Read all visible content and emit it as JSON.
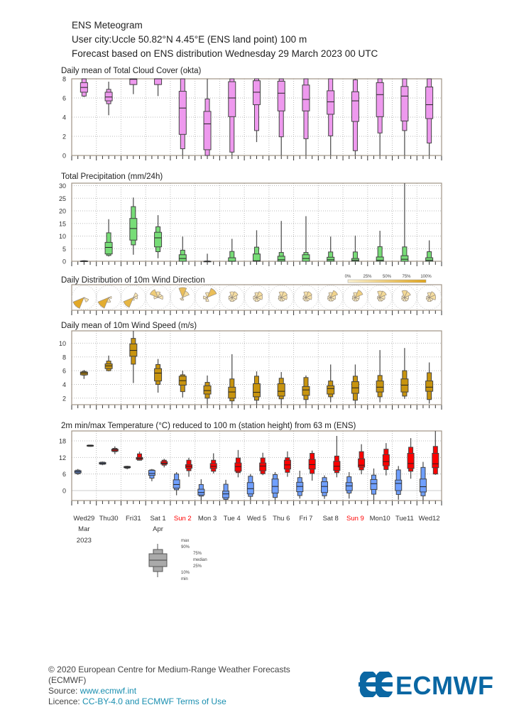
{
  "header": {
    "title": "ENS Meteogram",
    "location": "User city:Uccle 50.82°N 4.45°E (ENS land point) 100 m",
    "forecast": "Forecast based on ENS distribution Wednesday 29 March 2023 00 UTC"
  },
  "days": [
    {
      "label": "Wed29",
      "month": "Mar",
      "year": "2023",
      "weekend": false
    },
    {
      "label": "Thu30",
      "weekend": false
    },
    {
      "label": "Fri31",
      "weekend": false
    },
    {
      "label": "Sat 1",
      "month": "Apr",
      "weekend": false
    },
    {
      "label": "Sun 2",
      "weekend": true
    },
    {
      "label": "Mon 3",
      "weekend": false
    },
    {
      "label": "Tue 4",
      "weekend": false
    },
    {
      "label": "Wed 5",
      "weekend": false
    },
    {
      "label": "Thu 6",
      "weekend": false
    },
    {
      "label": "Fri 7",
      "weekend": false
    },
    {
      "label": "Sat 8",
      "weekend": false
    },
    {
      "label": "Sun 9",
      "weekend": true
    },
    {
      "label": "Mon10",
      "weekend": false
    },
    {
      "label": "Tue11",
      "weekend": false
    },
    {
      "label": "Wed12",
      "weekend": false
    }
  ],
  "colors": {
    "weekend": "#ff0000",
    "cloud": "#ee99ee",
    "precip": "#77dd77",
    "wind": "#c8940e",
    "tmin": "#6f9fff",
    "tmax": "#ff0000",
    "rose_low": "#fdf3d2",
    "rose_high": "#e0a41c"
  },
  "chart_data": [
    {
      "id": "cloud",
      "type": "boxplot",
      "title": "Daily mean of Total Cloud Cover (okta)",
      "ylim": [
        0,
        8
      ],
      "yticks": [
        0,
        2,
        4,
        6,
        8
      ],
      "grid": true,
      "box_stats": "min,p10,p25,median,p75,p90,max",
      "series": [
        {
          "color": "#ee99ee",
          "position": "day",
          "values": [
            [
              6.1,
              6.2,
              6.6,
              7.1,
              7.6,
              8,
              8
            ],
            [
              4.2,
              5.4,
              5.7,
              6.1,
              6.6,
              6.9,
              7.7
            ],
            [
              6.4,
              7.4,
              7.4,
              7.95,
              8,
              8,
              8
            ],
            [
              6.2,
              7.4,
              7.4,
              8,
              8,
              8,
              8
            ],
            [
              0,
              0.7,
              2.2,
              4.95,
              6.7,
              8,
              8
            ],
            [
              0,
              0,
              0.6,
              3.3,
              4.6,
              5.9,
              8
            ],
            [
              0,
              0.35,
              4.05,
              6.0,
              7.7,
              8,
              8
            ],
            [
              1.4,
              2.6,
              5.3,
              6.6,
              7.8,
              8,
              8
            ],
            [
              0,
              1.95,
              4.65,
              6.5,
              7.75,
              8,
              8
            ],
            [
              0,
              1.75,
              4.65,
              5.85,
              7.35,
              8,
              8
            ],
            [
              0,
              2.05,
              4.3,
              5.6,
              6.75,
              8,
              8
            ],
            [
              0,
              0.5,
              3.55,
              5.7,
              6.65,
              7.9,
              8
            ],
            [
              0,
              2.35,
              4.05,
              6.35,
              7.6,
              8,
              8
            ],
            [
              0,
              2.6,
              3.6,
              6.2,
              7.2,
              8,
              8
            ],
            [
              0,
              1.3,
              3.85,
              5.3,
              7.15,
              8,
              8
            ]
          ]
        }
      ]
    },
    {
      "id": "precip",
      "type": "boxplot",
      "title": "Total Precipitation (mm/24h)",
      "ylim": [
        0,
        31
      ],
      "yticks": [
        0,
        5,
        10,
        15,
        20,
        25,
        30
      ],
      "grid": true,
      "box_stats": "min,p10,p25,median,p75,p90,max",
      "series": [
        {
          "color": "#77dd77",
          "position": "day",
          "values": [
            [
              0,
              0,
              0,
              0,
              0.1,
              0.2,
              0.4
            ],
            [
              1.9,
              2.3,
              2.9,
              5.5,
              7.5,
              11.3,
              16.7
            ],
            [
              2.6,
              6.5,
              8.4,
              13,
              17,
              21.7,
              25.3
            ],
            [
              1.2,
              3.8,
              5.7,
              9.3,
              11.5,
              13.7,
              18.3
            ],
            [
              0,
              0,
              0,
              1.1,
              2.6,
              4.4,
              9.8
            ],
            [
              0,
              0,
              0,
              0,
              0,
              0.1,
              3
            ],
            [
              0,
              0,
              0,
              0,
              1.4,
              3.9,
              8.9
            ],
            [
              0,
              0,
              0,
              0.2,
              2.9,
              5.6,
              12.3
            ],
            [
              0,
              0,
              0,
              0.6,
              2,
              3.5,
              16
            ],
            [
              0,
              0,
              0,
              1.1,
              2.6,
              3.5,
              17.9
            ],
            [
              0,
              0,
              0,
              0.6,
              1.6,
              3.7,
              9.8
            ],
            [
              0,
              0,
              0,
              0.4,
              1.1,
              3.7,
              10.2
            ],
            [
              0,
              0,
              0,
              0.4,
              1.7,
              5.8,
              12.1
            ],
            [
              0,
              0,
              0,
              0.8,
              2.2,
              5.7,
              31
            ],
            [
              0,
              0,
              0,
              0.4,
              1.4,
              3.8,
              8.3
            ]
          ]
        }
      ]
    },
    {
      "id": "winddir",
      "type": "windrose",
      "title": "Daily Distribution of 10m Wind Direction",
      "sectors": [
        "N",
        "NE",
        "E",
        "SE",
        "S",
        "SW",
        "W",
        "NW"
      ],
      "legend_ticks": [
        "0%",
        "25%",
        "50%",
        "75%",
        "100%"
      ],
      "values": [
        [
          0,
          0,
          0,
          0.15,
          0,
          0.85,
          0,
          0
        ],
        [
          0,
          0,
          0.05,
          0,
          0.15,
          0.8,
          0,
          0
        ],
        [
          0,
          0.15,
          0.1,
          0,
          0.05,
          0.7,
          0,
          0
        ],
        [
          0.2,
          0.1,
          0.15,
          0,
          0,
          0,
          0.1,
          0.45
        ],
        [
          0.6,
          0.3,
          0,
          0,
          0.05,
          0.05,
          0,
          0
        ],
        [
          0.15,
          0.6,
          0,
          0,
          0.1,
          0.05,
          0.1,
          0
        ],
        [
          0.2,
          0.25,
          0.15,
          0.1,
          0.1,
          0.08,
          0.07,
          0.05
        ],
        [
          0.15,
          0.25,
          0.2,
          0.1,
          0.1,
          0.08,
          0.07,
          0.05
        ],
        [
          0.2,
          0.25,
          0.2,
          0.1,
          0.08,
          0.07,
          0.05,
          0.05
        ],
        [
          0.2,
          0.25,
          0.2,
          0.1,
          0.08,
          0.07,
          0.05,
          0.05
        ],
        [
          0.15,
          0.35,
          0.15,
          0.1,
          0.08,
          0.07,
          0.05,
          0.05
        ],
        [
          0.15,
          0.4,
          0.1,
          0.1,
          0.08,
          0.07,
          0.05,
          0.05
        ],
        [
          0.25,
          0.3,
          0.15,
          0.1,
          0.08,
          0.05,
          0.04,
          0.03
        ],
        [
          0.3,
          0.25,
          0.1,
          0.1,
          0.08,
          0.07,
          0.05,
          0.05
        ],
        [
          0.15,
          0.25,
          0.25,
          0.1,
          0.1,
          0.07,
          0.05,
          0.03
        ]
      ]
    },
    {
      "id": "wind",
      "type": "boxplot",
      "title": "Daily mean of 10m Wind Speed (m/s)",
      "ylim": [
        1.05,
        11.8
      ],
      "yticks": [
        2,
        4,
        6,
        8,
        10
      ],
      "grid": true,
      "box_stats": "min,p10,p25,median,p75,p90,max",
      "series": [
        {
          "color": "#c8940e",
          "position": "day",
          "values": [
            [
              4.8,
              5.35,
              5.4,
              5.65,
              5.8,
              5.9,
              6.1
            ],
            [
              5.9,
              6.0,
              6.3,
              6.7,
              7.0,
              7.4,
              8.2
            ],
            [
              4.2,
              6.95,
              8.1,
              8.95,
              9.9,
              10.7,
              11.9
            ],
            [
              2.8,
              4.0,
              4.5,
              5.65,
              6.3,
              6.9,
              7.7
            ],
            [
              2.1,
              2.95,
              3.9,
              4.55,
              5.2,
              5.4,
              6.0
            ],
            [
              1.1,
              2.0,
              2.6,
              3.1,
              3.8,
              4.3,
              5.3
            ],
            [
              0.9,
              1.6,
              2.0,
              2.9,
              3.6,
              4.8,
              8.4
            ],
            [
              1.0,
              1.7,
              2.2,
              2.85,
              4.1,
              5.2,
              5.9
            ],
            [
              0.7,
              1.9,
              2.3,
              3.0,
              4.1,
              4.9,
              5.8
            ],
            [
              1.1,
              1.8,
              2.4,
              3.2,
              3.7,
              5.0,
              5.3
            ],
            [
              1.4,
              2.2,
              2.6,
              3.4,
              3.8,
              4.5,
              6.9
            ],
            [
              1.1,
              1.7,
              2.7,
              3.5,
              4.4,
              5.2,
              6.9
            ],
            [
              1.4,
              2.2,
              2.9,
              3.6,
              4.5,
              5.3,
              9.0
            ],
            [
              1.9,
              2.3,
              2.9,
              3.9,
              4.8,
              6.0,
              9.3
            ],
            [
              1.2,
              1.8,
              3.0,
              3.6,
              4.5,
              5.7,
              7.2
            ]
          ]
        }
      ]
    },
    {
      "id": "temp",
      "type": "boxplot",
      "title": "2m min/max Temperature (°C) reduced to 100 m (station height) from 63 m (ENS)",
      "ylim": [
        -3.6,
        21.6
      ],
      "yticks": [
        0,
        6,
        12,
        18
      ],
      "grid": true,
      "box_stats": "min,p10,p25,median,p75,p90,max",
      "series": [
        {
          "color": "#6f9fff",
          "position": "early",
          "values": [
            [
              5.7,
              6.1,
              6.4,
              6.8,
              7.2,
              7.4,
              7.8
            ],
            [
              9.2,
              9.5,
              9.6,
              9.9,
              10.2,
              10.3,
              10.5
            ],
            [
              7.7,
              8.1,
              8.3,
              8.5,
              8.7,
              8.8,
              9.0
            ],
            [
              3.4,
              4.5,
              5.5,
              6.2,
              7.3,
              7.5,
              7.8
            ],
            [
              -1.7,
              0.3,
              0.9,
              2.2,
              3.9,
              6.0,
              6.7
            ],
            [
              -4.0,
              -2.0,
              -1.6,
              -0.7,
              0.5,
              2.2,
              4.1
            ],
            [
              -5.0,
              -3.2,
              -2.6,
              -1.2,
              -0.2,
              2.3,
              3.9
            ],
            [
              -3.5,
              -2.1,
              -1.2,
              0.7,
              2.9,
              5.2,
              6.0
            ],
            [
              -4.2,
              -2.5,
              -0.9,
              1.5,
              4.2,
              5.8,
              6.7
            ],
            [
              -2.9,
              -1.8,
              -0.4,
              1.5,
              3.0,
              4.7,
              7.2
            ],
            [
              -3.0,
              -1.9,
              -0.7,
              1.5,
              3.2,
              4.7,
              5.5
            ],
            [
              -2.9,
              -0.9,
              0,
              1.7,
              2.9,
              5.0,
              6.7
            ],
            [
              -3.6,
              -1.3,
              0.4,
              2.5,
              4.0,
              5.6,
              8.0
            ],
            [
              -3.3,
              -1.4,
              0,
              2.6,
              3.8,
              7.5,
              8.9
            ],
            [
              -3.8,
              -1.9,
              -0.5,
              1.4,
              4.2,
              8.4,
              10.4
            ]
          ]
        },
        {
          "color": "#ff0000",
          "position": "late",
          "values": [
            [
              15.9,
              16.0,
              16.1,
              16.3,
              16.4,
              16.5,
              16.6
            ],
            [
              13.2,
              14.1,
              14.3,
              14.7,
              15.0,
              15.3,
              16.0
            ],
            [
              10.9,
              11.0,
              11.3,
              11.7,
              12.0,
              13.3,
              14.1
            ],
            [
              8.4,
              9.2,
              9.6,
              9.9,
              10.5,
              11.0,
              11.5
            ],
            [
              5.0,
              7.2,
              8.1,
              8.8,
              9.4,
              11.0,
              11.9
            ],
            [
              6.2,
              7.0,
              8.0,
              8.8,
              9.8,
              11.0,
              13.5
            ],
            [
              4.8,
              6.5,
              7.0,
              8.7,
              10.0,
              11.8,
              14.7
            ],
            [
              5.6,
              6.1,
              7.2,
              8.9,
              10.0,
              11.8,
              13.7
            ],
            [
              5.0,
              6.6,
              7.8,
              9.3,
              11.0,
              11.9,
              14.2
            ],
            [
              3.6,
              6.2,
              7.8,
              9.4,
              11.3,
              13.5,
              14.5
            ],
            [
              4.8,
              6.5,
              7.3,
              8.8,
              10.6,
              12.5,
              19.8
            ],
            [
              5.9,
              7.5,
              8.5,
              9.2,
              11.5,
              14.1,
              16.8
            ],
            [
              5.5,
              7.6,
              9.0,
              10.5,
              13.0,
              15.0,
              17.2
            ],
            [
              4.3,
              7.0,
              8.0,
              9.8,
              13.5,
              15.7,
              19.0
            ],
            [
              5.7,
              6.0,
              8.3,
              9.7,
              13.5,
              16.0,
              21.8
            ]
          ]
        }
      ]
    }
  ],
  "legend": {
    "max": "max",
    "p90": "90%",
    "p75": "75%",
    "median": "median",
    "p25": "25%",
    "p10": "10%",
    "min": "min"
  },
  "footer": {
    "copyright": "© 2020 European Centre for Medium-Range Weather Forecasts",
    "org": "(ECMWF)",
    "source_label": "Source: ",
    "source_link": "www.ecmwf.int",
    "licence_label": "Licence: ",
    "licence_link": "CC-BY-4.0 and ECMWF Terms of Use",
    "logo_text": "ECMWF"
  }
}
